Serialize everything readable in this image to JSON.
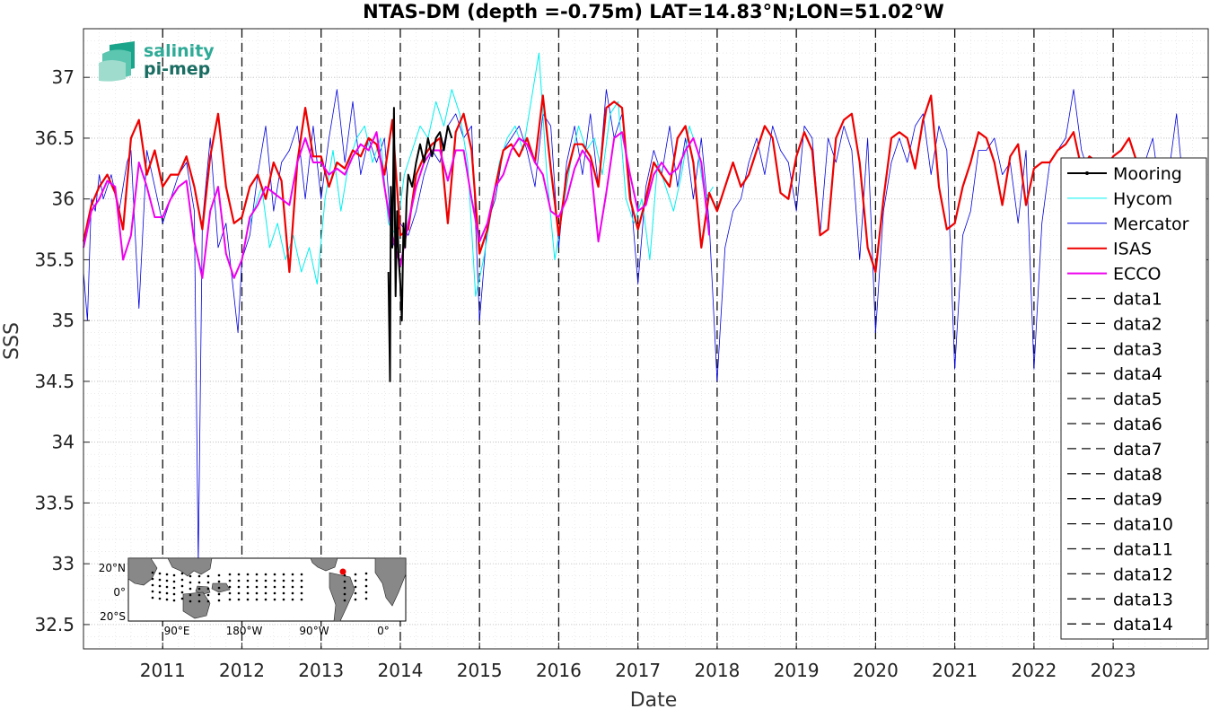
{
  "chart_data": {
    "type": "line",
    "title": "NTAS-DM (depth =-0.75m) LAT=14.83°N;LON=51.02°W",
    "xlabel": "Date",
    "ylabel": "SSS",
    "xlim": [
      2010.0,
      2024.2
    ],
    "ylim": [
      32.3,
      37.4
    ],
    "x_ticks": [
      2011,
      2012,
      2013,
      2014,
      2015,
      2016,
      2017,
      2018,
      2019,
      2020,
      2021,
      2022,
      2023
    ],
    "x_tick_labels": [
      "2011",
      "2012",
      "2013",
      "2014",
      "2015",
      "2016",
      "2017",
      "2018",
      "2019",
      "2020",
      "2021",
      "2022",
      "2023"
    ],
    "y_ticks": [
      32.5,
      33,
      33.5,
      34,
      34.5,
      35,
      35.5,
      36,
      36.5,
      37
    ],
    "y_tick_labels": [
      "32.5",
      "33",
      "33.5",
      "34",
      "34.5",
      "35",
      "35.5",
      "36",
      "36.5",
      "37"
    ],
    "grid": "dotted",
    "legend_position": "right",
    "vlines_x": [
      2011,
      2012,
      2013,
      2014,
      2015,
      2016,
      2017,
      2018,
      2019,
      2020,
      2021,
      2022,
      2023
    ],
    "series": [
      {
        "name": "Mooring",
        "color": "#000000",
        "width": 2,
        "x": [
          2013.85,
          2013.87,
          2013.88,
          2013.9,
          2013.92,
          2013.94,
          2013.96,
          2013.98,
          2014.0,
          2014.02,
          2014.04,
          2014.06,
          2014.08,
          2014.1,
          2014.15,
          2014.2,
          2014.25,
          2014.3,
          2014.35,
          2014.4,
          2014.45,
          2014.5,
          2014.55,
          2014.6,
          2014.65
        ],
        "y": [
          35.4,
          34.5,
          36.1,
          35.6,
          36.75,
          35.2,
          35.9,
          35.5,
          35.3,
          35.0,
          35.8,
          35.6,
          36.0,
          36.2,
          36.1,
          36.3,
          36.45,
          36.3,
          36.5,
          36.35,
          36.5,
          36.55,
          36.4,
          36.6,
          36.5
        ]
      },
      {
        "name": "Hycom",
        "color": "#00f0f0",
        "width": 1,
        "x": [
          2012.05,
          2012.15,
          2012.25,
          2012.35,
          2012.45,
          2012.55,
          2012.65,
          2012.75,
          2012.85,
          2012.95,
          2013.05,
          2013.15,
          2013.25,
          2013.35,
          2013.45,
          2013.55,
          2013.65,
          2013.75,
          2013.85,
          2013.95,
          2014.05,
          2014.15,
          2014.25,
          2014.35,
          2014.45,
          2014.55,
          2014.65,
          2014.75,
          2014.85,
          2014.95,
          2015.05,
          2015.15,
          2015.25,
          2015.35,
          2015.45,
          2015.55,
          2015.65,
          2015.75,
          2015.85,
          2015.95,
          2016.05,
          2016.15,
          2016.25,
          2016.35,
          2016.45,
          2016.55,
          2016.65,
          2016.75,
          2016.85,
          2016.95,
          2017.05,
          2017.15,
          2017.25,
          2017.35,
          2017.45,
          2017.55,
          2017.65,
          2017.75,
          2017.85,
          2017.95
        ],
        "y": [
          35.7,
          35.9,
          36.1,
          35.6,
          35.8,
          35.5,
          35.7,
          35.4,
          35.6,
          35.3,
          36.0,
          36.4,
          35.9,
          36.3,
          36.5,
          36.6,
          36.3,
          36.5,
          35.8,
          35.7,
          36.2,
          36.4,
          36.6,
          36.5,
          36.8,
          36.6,
          36.9,
          36.7,
          36.3,
          35.2,
          35.5,
          35.9,
          36.3,
          36.5,
          36.6,
          36.4,
          36.8,
          37.2,
          36.2,
          35.5,
          35.9,
          36.3,
          36.6,
          36.4,
          36.5,
          36.2,
          36.7,
          36.8,
          36.0,
          35.8,
          36.0,
          35.5,
          36.3,
          36.1,
          35.9,
          36.2,
          36.6,
          36.4,
          36.0,
          36.1
        ]
      },
      {
        "name": "Mercator",
        "color": "#0000dd",
        "width": 0.8,
        "x": [
          2010.0,
          2010.05,
          2010.1,
          2010.15,
          2010.2,
          2010.25,
          2010.35,
          2010.45,
          2010.55,
          2010.6,
          2010.7,
          2010.8,
          2010.9,
          2011.0,
          2011.1,
          2011.2,
          2011.3,
          2011.4,
          2011.45,
          2011.5,
          2011.6,
          2011.7,
          2011.8,
          2011.9,
          2011.95,
          2012.0,
          2012.1,
          2012.2,
          2012.3,
          2012.4,
          2012.5,
          2012.6,
          2012.7,
          2012.8,
          2012.9,
          2013.0,
          2013.1,
          2013.2,
          2013.3,
          2013.4,
          2013.5,
          2013.6,
          2013.7,
          2013.8,
          2013.9,
          2014.0,
          2014.1,
          2014.2,
          2014.3,
          2014.4,
          2014.5,
          2014.6,
          2014.7,
          2014.8,
          2014.9,
          2015.0,
          2015.1,
          2015.2,
          2015.3,
          2015.4,
          2015.5,
          2015.6,
          2015.7,
          2015.8,
          2015.9,
          2016.0,
          2016.1,
          2016.2,
          2016.3,
          2016.4,
          2016.5,
          2016.6,
          2016.7,
          2016.8,
          2016.9,
          2017.0,
          2017.1,
          2017.2,
          2017.3,
          2017.4,
          2017.5,
          2017.6,
          2017.7,
          2017.8,
          2017.9,
          2018.0,
          2018.1,
          2018.2,
          2018.3,
          2018.4,
          2018.5,
          2018.6,
          2018.7,
          2018.8,
          2018.9,
          2019.0,
          2019.1,
          2019.2,
          2019.3,
          2019.4,
          2019.5,
          2019.6,
          2019.7,
          2019.8,
          2019.9,
          2020.0,
          2020.1,
          2020.2,
          2020.3,
          2020.4,
          2020.5,
          2020.6,
          2020.7,
          2020.8,
          2020.9,
          2021.0,
          2021.1,
          2021.2,
          2021.3,
          2021.4,
          2021.5,
          2021.6,
          2021.7,
          2021.8,
          2021.9,
          2022.0,
          2022.1,
          2022.2,
          2022.3,
          2022.4,
          2022.5,
          2022.6,
          2022.7,
          2022.8,
          2022.9,
          2023.0,
          2023.1,
          2023.2,
          2023.3,
          2023.4,
          2023.5,
          2023.6,
          2023.7,
          2023.8,
          2023.9
        ],
        "y": [
          35.4,
          35.0,
          36.0,
          35.9,
          36.2,
          36.0,
          36.2,
          35.9,
          36.3,
          36.4,
          35.1,
          36.4,
          36.1,
          35.8,
          36.0,
          36.2,
          36.3,
          35.9,
          33.0,
          35.8,
          36.5,
          35.6,
          35.8,
          35.2,
          34.9,
          35.5,
          35.7,
          36.2,
          36.6,
          35.9,
          36.3,
          36.4,
          36.6,
          36.0,
          36.6,
          36.0,
          36.5,
          36.9,
          36.3,
          36.8,
          36.2,
          36.5,
          36.3,
          36.5,
          35.6,
          35.8,
          35.7,
          35.9,
          36.2,
          36.4,
          36.3,
          36.6,
          36.7,
          36.5,
          36.6,
          35.0,
          35.8,
          36.0,
          36.4,
          36.5,
          36.6,
          36.4,
          36.1,
          36.7,
          36.6,
          35.6,
          36.3,
          36.6,
          36.2,
          36.7,
          36.1,
          36.9,
          36.5,
          36.7,
          36.1,
          35.3,
          36.1,
          36.4,
          36.2,
          36.6,
          36.1,
          36.5,
          36.0,
          36.5,
          35.8,
          34.5,
          35.6,
          35.9,
          36.0,
          36.3,
          36.5,
          36.2,
          36.6,
          36.4,
          36.3,
          35.9,
          36.6,
          36.5,
          35.7,
          36.5,
          36.3,
          36.6,
          36.4,
          35.5,
          36.5,
          34.9,
          35.9,
          36.3,
          36.5,
          36.3,
          36.6,
          36.7,
          36.2,
          36.6,
          36.4,
          34.6,
          35.7,
          35.9,
          36.4,
          36.4,
          36.5,
          36.2,
          36.3,
          35.8,
          36.4,
          34.6,
          35.8,
          36.3,
          36.4,
          36.5,
          36.9,
          36.4,
          36.2,
          36.3,
          35.9,
          36.2,
          36.3,
          35.9,
          36.0,
          36.3,
          36.5,
          36.0,
          36.2,
          36.7,
          36.0
        ]
      },
      {
        "name": "ISAS",
        "color": "#ee0000",
        "width": 2.2,
        "x": [
          2010.0,
          2010.1,
          2010.2,
          2010.3,
          2010.4,
          2010.5,
          2010.6,
          2010.7,
          2010.8,
          2010.9,
          2011.0,
          2011.1,
          2011.2,
          2011.3,
          2011.4,
          2011.5,
          2011.6,
          2011.7,
          2011.8,
          2011.9,
          2012.0,
          2012.1,
          2012.2,
          2012.3,
          2012.4,
          2012.5,
          2012.6,
          2012.7,
          2012.8,
          2012.9,
          2013.0,
          2013.1,
          2013.2,
          2013.3,
          2013.4,
          2013.5,
          2013.6,
          2013.7,
          2013.8,
          2013.9,
          2014.0,
          2014.1,
          2014.2,
          2014.3,
          2014.4,
          2014.5,
          2014.6,
          2014.7,
          2014.8,
          2014.9,
          2015.0,
          2015.1,
          2015.2,
          2015.3,
          2015.4,
          2015.5,
          2015.6,
          2015.7,
          2015.8,
          2015.9,
          2016.0,
          2016.1,
          2016.2,
          2016.3,
          2016.4,
          2016.5,
          2016.6,
          2016.7,
          2016.8,
          2016.9,
          2017.0,
          2017.1,
          2017.2,
          2017.3,
          2017.4,
          2017.5,
          2017.6,
          2017.7,
          2017.8,
          2017.9,
          2018.0,
          2018.1,
          2018.2,
          2018.3,
          2018.4,
          2018.5,
          2018.6,
          2018.7,
          2018.8,
          2018.9,
          2019.0,
          2019.1,
          2019.2,
          2019.3,
          2019.4,
          2019.5,
          2019.6,
          2019.7,
          2019.8,
          2019.9,
          2020.0,
          2020.1,
          2020.2,
          2020.3,
          2020.4,
          2020.5,
          2020.6,
          2020.7,
          2020.8,
          2020.9,
          2021.0,
          2021.1,
          2021.2,
          2021.3,
          2021.4,
          2021.5,
          2021.6,
          2021.7,
          2021.8,
          2021.9,
          2022.0,
          2022.1,
          2022.2,
          2022.3,
          2022.4,
          2022.5,
          2022.6,
          2022.7,
          2022.8,
          2022.9,
          2023.0,
          2023.1,
          2023.2,
          2023.3,
          2023.4
        ],
        "y": [
          35.65,
          35.95,
          36.1,
          36.2,
          36.05,
          35.75,
          36.5,
          36.65,
          36.2,
          36.4,
          36.1,
          36.2,
          36.2,
          36.35,
          36.1,
          35.75,
          36.35,
          36.7,
          36.1,
          35.8,
          35.85,
          36.1,
          36.2,
          36.0,
          36.3,
          36.15,
          35.4,
          36.3,
          36.75,
          36.35,
          36.35,
          36.1,
          36.3,
          36.25,
          36.4,
          36.35,
          36.5,
          36.45,
          36.2,
          36.65,
          35.7,
          35.75,
          36.2,
          36.35,
          36.45,
          36.5,
          35.8,
          36.55,
          36.7,
          36.4,
          35.55,
          35.75,
          36.1,
          36.4,
          36.45,
          36.35,
          36.5,
          36.3,
          36.85,
          36.25,
          35.7,
          36.2,
          36.45,
          36.45,
          36.35,
          36.1,
          36.75,
          36.8,
          36.75,
          36.0,
          35.75,
          36.0,
          36.3,
          36.2,
          36.1,
          36.5,
          36.6,
          36.3,
          35.6,
          36.05,
          35.9,
          36.1,
          36.3,
          36.1,
          36.2,
          36.4,
          36.6,
          36.5,
          36.05,
          36.0,
          36.35,
          36.55,
          36.4,
          35.7,
          35.75,
          36.5,
          36.65,
          36.7,
          36.3,
          35.6,
          35.4,
          36.0,
          36.5,
          36.55,
          36.5,
          36.25,
          36.65,
          36.85,
          36.1,
          35.75,
          35.8,
          36.1,
          36.3,
          36.55,
          36.5,
          36.3,
          35.95,
          36.35,
          36.45,
          35.95,
          36.25,
          36.3,
          36.3,
          36.4,
          36.45,
          36.55,
          36.25,
          36.35,
          36.3,
          36.25,
          36.35,
          36.4,
          36.5,
          36.3,
          36.25
        ]
      },
      {
        "name": "ECCO",
        "color": "#ee00ee",
        "width": 2,
        "x": [
          2010.0,
          2010.1,
          2010.2,
          2010.3,
          2010.4,
          2010.5,
          2010.6,
          2010.7,
          2010.8,
          2010.9,
          2011.0,
          2011.1,
          2011.2,
          2011.3,
          2011.4,
          2011.5,
          2011.6,
          2011.7,
          2011.8,
          2011.9,
          2012.0,
          2012.1,
          2012.2,
          2012.3,
          2012.4,
          2012.5,
          2012.6,
          2012.7,
          2012.8,
          2012.9,
          2013.0,
          2013.1,
          2013.2,
          2013.3,
          2013.4,
          2013.5,
          2013.6,
          2013.7,
          2013.8,
          2013.9,
          2014.0,
          2014.1,
          2014.2,
          2014.3,
          2014.4,
          2014.5,
          2014.6,
          2014.7,
          2014.8,
          2014.9,
          2015.0,
          2015.1,
          2015.2,
          2015.3,
          2015.4,
          2015.5,
          2015.6,
          2015.7,
          2015.8,
          2015.9,
          2016.0,
          2016.1,
          2016.2,
          2016.3,
          2016.4,
          2016.5,
          2016.6,
          2016.7,
          2016.8,
          2016.9,
          2017.0,
          2017.1,
          2017.2,
          2017.3,
          2017.4,
          2017.5,
          2017.6,
          2017.7,
          2017.8,
          2017.9
        ],
        "y": [
          35.6,
          35.9,
          36.0,
          36.15,
          36.1,
          35.5,
          35.7,
          36.3,
          36.1,
          35.85,
          35.85,
          36.0,
          36.1,
          36.15,
          35.65,
          35.35,
          35.9,
          36.1,
          35.55,
          35.35,
          35.5,
          35.85,
          35.95,
          36.1,
          36.05,
          36.0,
          35.95,
          36.3,
          36.5,
          36.3,
          36.3,
          36.2,
          36.25,
          36.2,
          36.35,
          36.45,
          36.4,
          36.55,
          36.1,
          35.7,
          35.45,
          35.8,
          36.1,
          36.3,
          36.4,
          36.4,
          36.15,
          36.4,
          36.4,
          36.0,
          35.65,
          35.8,
          36.1,
          36.2,
          36.4,
          36.5,
          36.45,
          36.3,
          36.2,
          35.9,
          35.85,
          36.0,
          36.25,
          36.4,
          36.3,
          35.65,
          36.05,
          36.5,
          36.55,
          36.2,
          35.9,
          35.95,
          36.2,
          36.3,
          36.2,
          36.25,
          36.4,
          36.5,
          36.3,
          35.7
        ]
      }
    ],
    "legend_entries": [
      "Mooring",
      "Hycom",
      "Mercator",
      "ISAS",
      "ECCO",
      "data1",
      "data2",
      "data3",
      "data4",
      "data5",
      "data6",
      "data7",
      "data8",
      "data9",
      "data10",
      "data11",
      "data12",
      "data13",
      "data14"
    ],
    "logo": {
      "line1": "salinity",
      "line2": "pi-mep"
    },
    "inset_map": {
      "lat_labels": [
        "20°N",
        "0°",
        "20°S"
      ],
      "lon_labels": [
        "90°E",
        "180°W",
        "90°W",
        "0°"
      ]
    }
  }
}
